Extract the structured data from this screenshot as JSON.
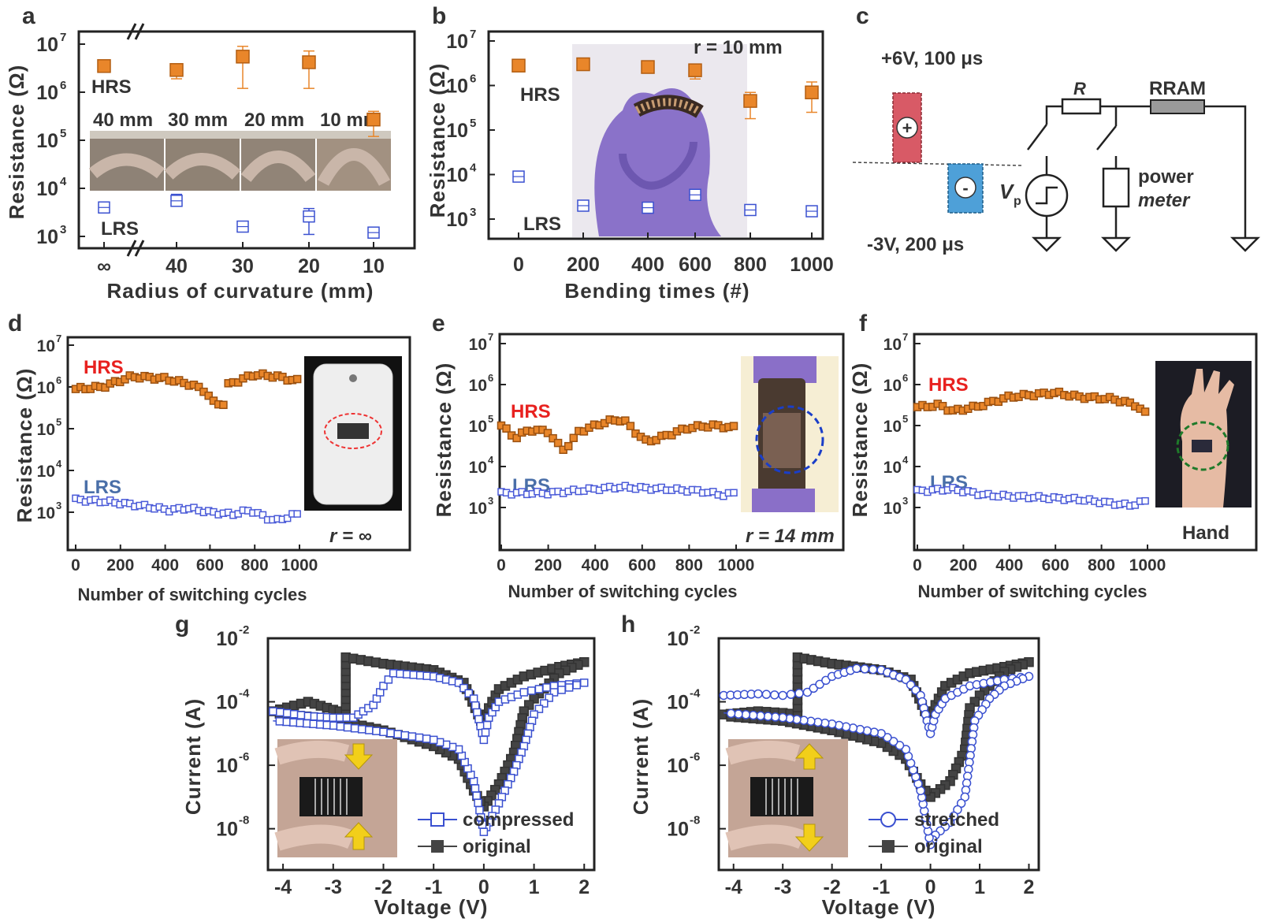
{
  "panels": {
    "a": "a",
    "b": "b",
    "c": "c",
    "d": "d",
    "e": "e",
    "f": "f",
    "g": "g",
    "h": "h"
  },
  "colors": {
    "hrs": "#e9862a",
    "lrs": "#3a50d0",
    "original": "#444444",
    "hrs_text": "#e8211f",
    "lrs_text": "#4a6fa8"
  },
  "chart_data": [
    {
      "id": "a",
      "type": "scatter",
      "xlabel": "Radius of curvature (mm)",
      "ylabel": "Resistance (Ω)",
      "categories": [
        "∞",
        "40",
        "30",
        "20",
        "10"
      ],
      "yscale": "log",
      "ylim_exp": [
        3,
        7
      ],
      "yticks": [
        "10",
        "10",
        "10",
        "10",
        "10"
      ],
      "ytick_exp": [
        "3",
        "4",
        "5",
        "6",
        "7"
      ],
      "series": [
        {
          "name": "HRS",
          "values": [
            3500000.0,
            2900000.0,
            5500000.0,
            4200000.0,
            270000.0
          ],
          "err_lo": [
            3000000.0,
            1900000.0,
            1200000.0,
            1200000.0,
            120000.0
          ],
          "err_hi": [
            4200000.0,
            3600000.0,
            9000000.0,
            7200000.0,
            400000.0
          ]
        },
        {
          "name": "LRS",
          "values": [
            4000.0,
            5500.0,
            1600.0,
            2600.0,
            1200.0
          ],
          "err_lo": [
            3300.0,
            4400.0,
            1300.0,
            1100.0,
            1000.0
          ],
          "err_hi": [
            4600.0,
            7500.0,
            1900.0,
            3800.0,
            1400.0
          ]
        }
      ],
      "inset_labels": [
        "40 mm",
        "30 mm",
        "20 mm",
        "10 mm"
      ]
    },
    {
      "id": "b",
      "type": "scatter",
      "xlabel": "Bending times (#)",
      "ylabel": "Resistance (Ω)",
      "x": [
        0,
        200,
        400,
        600,
        800,
        1000
      ],
      "xticks": [
        "0",
        "200",
        "400",
        "600",
        "800",
        "1000"
      ],
      "yscale": "log",
      "ylim_exp": [
        3,
        7
      ],
      "yticks": [
        "10",
        "10",
        "10",
        "10",
        "10"
      ],
      "ytick_exp": [
        "3",
        "4",
        "5",
        "6",
        "7"
      ],
      "series": [
        {
          "name": "HRS",
          "values": [
            2800000.0,
            3000000.0,
            2600000.0,
            2200000.0,
            450000.0,
            700000.0
          ],
          "err_lo": [
            2200000.0,
            2300000.0,
            2000000.0,
            1400000.0,
            180000.0,
            250000.0
          ],
          "err_hi": [
            3400000.0,
            3600000.0,
            3000000.0,
            2800000.0,
            700000.0,
            1200000.0
          ]
        },
        {
          "name": "LRS",
          "values": [
            9000.0,
            2000.0,
            1800.0,
            3500.0,
            1600.0,
            1500.0
          ],
          "err_lo": [
            8000.0,
            1700.0,
            1500.0,
            3000.0,
            1400.0,
            1300.0
          ],
          "err_hi": [
            10000.0,
            2300.0,
            2100.0,
            4000.0,
            1800.0,
            1700.0
          ]
        }
      ],
      "annotation": "r = 10 mm"
    },
    {
      "id": "c",
      "type": "diagram",
      "pulse_pos": "+6V, 100 μs",
      "pulse_neg": "-3V, 200 μs",
      "resistor": "R",
      "device": "RRAM",
      "source": "V",
      "source_sub": "p",
      "meter_1": "power",
      "meter_2": "meter"
    },
    {
      "id": "d",
      "type": "scatter",
      "xlabel": "Number of switching cycles",
      "ylabel": "Resistance (Ω)",
      "xticks": [
        "0",
        "200",
        "400",
        "600",
        "800",
        "1000"
      ],
      "yscale": "log",
      "ylim_exp": [
        2.6,
        7
      ],
      "yticks": [
        "10",
        "10",
        "10",
        "10",
        "10"
      ],
      "ytick_exp": [
        "3",
        "4",
        "5",
        "6",
        "7"
      ],
      "series": [
        {
          "name": "HRS",
          "start_log": 5.95,
          "segments": [
            [
              0,
              5.95
            ],
            [
              120,
              6.0
            ],
            [
              250,
              6.25
            ],
            [
              400,
              6.2
            ],
            [
              520,
              6.05
            ],
            [
              580,
              5.9
            ],
            [
              620,
              5.6
            ],
            [
              660,
              5.6
            ],
            [
              680,
              6.05
            ],
            [
              800,
              6.3
            ],
            [
              900,
              6.25
            ],
            [
              980,
              6.15
            ]
          ]
        },
        {
          "name": "LRS",
          "segments": [
            [
              0,
              3.3
            ],
            [
              150,
              3.25
            ],
            [
              300,
              3.15
            ],
            [
              420,
              3.05
            ],
            [
              500,
              3.1
            ],
            [
              600,
              3.0
            ],
            [
              700,
              2.95
            ],
            [
              780,
              3.05
            ],
            [
              860,
              2.85
            ],
            [
              900,
              2.8
            ],
            [
              980,
              2.95
            ]
          ]
        }
      ],
      "annotation": "r = ∞"
    },
    {
      "id": "e",
      "type": "scatter",
      "xlabel": "Number of switching cycles",
      "ylabel": "Resistance (Ω)",
      "xticks": [
        "0",
        "200",
        "400",
        "600",
        "800",
        "1000"
      ],
      "yscale": "log",
      "ylim_exp": [
        2.6,
        7
      ],
      "yticks": [
        "10",
        "10",
        "10",
        "10",
        "10"
      ],
      "ytick_exp": [
        "3",
        "4",
        "5",
        "6",
        "7"
      ],
      "series": [
        {
          "name": "HRS",
          "segments": [
            [
              0,
              5.0
            ],
            [
              60,
              4.7
            ],
            [
              120,
              4.9
            ],
            [
              200,
              4.85
            ],
            [
              260,
              4.4
            ],
            [
              300,
              4.6
            ],
            [
              330,
              4.85
            ],
            [
              450,
              5.1
            ],
            [
              520,
              5.15
            ],
            [
              560,
              4.9
            ],
            [
              620,
              4.6
            ],
            [
              700,
              4.75
            ],
            [
              800,
              4.95
            ],
            [
              900,
              5.0
            ],
            [
              990,
              4.95
            ]
          ]
        },
        {
          "name": "LRS",
          "segments": [
            [
              0,
              3.35
            ],
            [
              200,
              3.35
            ],
            [
              300,
              3.4
            ],
            [
              500,
              3.5
            ],
            [
              700,
              3.45
            ],
            [
              850,
              3.4
            ],
            [
              950,
              3.3
            ],
            [
              990,
              3.35
            ]
          ]
        }
      ],
      "annotation": "r = 14 mm"
    },
    {
      "id": "f",
      "type": "scatter",
      "xlabel": "Number of switching cycles",
      "ylabel": "Resistance (Ω)",
      "xticks": [
        "0",
        "200",
        "400",
        "600",
        "800",
        "1000"
      ],
      "yscale": "log",
      "ylim_exp": [
        2.6,
        7
      ],
      "yticks": [
        "10",
        "10",
        "10",
        "10",
        "10"
      ],
      "ytick_exp": [
        "3",
        "4",
        "5",
        "6",
        "7"
      ],
      "series": [
        {
          "name": "HRS",
          "segments": [
            [
              0,
              5.45
            ],
            [
              100,
              5.5
            ],
            [
              150,
              5.35
            ],
            [
              250,
              5.45
            ],
            [
              400,
              5.7
            ],
            [
              500,
              5.75
            ],
            [
              600,
              5.8
            ],
            [
              700,
              5.7
            ],
            [
              850,
              5.65
            ],
            [
              950,
              5.5
            ],
            [
              990,
              5.3
            ]
          ]
        },
        {
          "name": "LRS",
          "segments": [
            [
              0,
              3.4
            ],
            [
              150,
              3.45
            ],
            [
              300,
              3.3
            ],
            [
              500,
              3.25
            ],
            [
              700,
              3.2
            ],
            [
              850,
              3.1
            ],
            [
              920,
              3.05
            ],
            [
              990,
              3.15
            ]
          ]
        }
      ],
      "annotation": "Hand"
    },
    {
      "id": "g",
      "type": "line",
      "xlabel": "Voltage (V)",
      "ylabel": "Current (A)",
      "xticks": [
        "-4",
        "-3",
        "-2",
        "-1",
        "0",
        "1",
        "2"
      ],
      "yticks": [
        "10",
        "10",
        "10",
        "10"
      ],
      "ytick_exp": [
        "-8",
        "-6",
        "-4",
        "-2"
      ],
      "xlim": [
        -4.3,
        2.2
      ],
      "ylim_exp": [
        -9.3,
        -2
      ],
      "series": [
        {
          "name": "compressed",
          "path": [
            [
              -4.2,
              -4.3
            ],
            [
              -3.5,
              -4.45
            ],
            [
              -3.0,
              -4.5
            ],
            [
              -2.6,
              -4.5
            ],
            [
              -2.4,
              -4.3
            ],
            [
              -2.2,
              -4.1
            ],
            [
              -2.0,
              -3.5
            ],
            [
              -1.8,
              -3.1
            ],
            [
              -1.0,
              -3.2
            ],
            [
              -0.5,
              -3.4
            ],
            [
              -0.2,
              -3.9
            ],
            [
              0.0,
              -5.2
            ],
            [
              0.1,
              -4.5
            ],
            [
              0.3,
              -4.0
            ],
            [
              0.8,
              -3.7
            ],
            [
              1.4,
              -3.5
            ],
            [
              2.0,
              -3.4
            ],
            [
              1.4,
              -3.7
            ],
            [
              1.0,
              -4.4
            ],
            [
              0.8,
              -5.4
            ],
            [
              0.6,
              -6.2
            ],
            [
              0.3,
              -7.2
            ],
            [
              0.1,
              -7.8
            ],
            [
              0.0,
              -8.1
            ],
            [
              -0.2,
              -6.5
            ],
            [
              -0.5,
              -5.5
            ],
            [
              -1.0,
              -5.2
            ],
            [
              -2.0,
              -4.95
            ],
            [
              -3.0,
              -4.75
            ],
            [
              -4.2,
              -4.6
            ]
          ]
        },
        {
          "name": "original",
          "path": [
            [
              -4.2,
              -4.3
            ],
            [
              -3.5,
              -4.0
            ],
            [
              -3.0,
              -4.25
            ],
            [
              -2.75,
              -4.35
            ],
            [
              -2.75,
              -2.6
            ],
            [
              -2.0,
              -2.8
            ],
            [
              -1.0,
              -3.0
            ],
            [
              -0.4,
              -3.4
            ],
            [
              0.0,
              -4.8
            ],
            [
              0.1,
              -4.2
            ],
            [
              0.3,
              -3.6
            ],
            [
              0.8,
              -3.2
            ],
            [
              1.5,
              -2.9
            ],
            [
              2.0,
              -2.75
            ],
            [
              1.5,
              -3.1
            ],
            [
              1.0,
              -3.9
            ],
            [
              0.8,
              -4.3
            ],
            [
              0.6,
              -5.6
            ],
            [
              0.3,
              -6.6
            ],
            [
              0.0,
              -7.3
            ],
            [
              -0.2,
              -6.8
            ],
            [
              -0.5,
              -5.8
            ],
            [
              -1.0,
              -5.4
            ],
            [
              -2.0,
              -4.9
            ],
            [
              -3.0,
              -4.55
            ],
            [
              -4.2,
              -4.35
            ]
          ]
        }
      ]
    },
    {
      "id": "h",
      "type": "line",
      "xlabel": "Voltage (V)",
      "ylabel": "Current (A)",
      "xticks": [
        "-4",
        "-3",
        "-2",
        "-1",
        "0",
        "1",
        "2"
      ],
      "yticks": [
        "10",
        "10",
        "10",
        "10"
      ],
      "ytick_exp": [
        "-8",
        "-6",
        "-4",
        "-2"
      ],
      "xlim": [
        -4.3,
        2.2
      ],
      "ylim_exp": [
        -9.3,
        -2
      ],
      "series": [
        {
          "name": "stretched",
          "path": [
            [
              -4.2,
              -3.8
            ],
            [
              -3.5,
              -3.75
            ],
            [
              -3.0,
              -3.8
            ],
            [
              -2.5,
              -3.7
            ],
            [
              -2.0,
              -3.2
            ],
            [
              -1.5,
              -2.95
            ],
            [
              -1.0,
              -3.0
            ],
            [
              -0.5,
              -3.3
            ],
            [
              -0.2,
              -3.8
            ],
            [
              0.0,
              -5.0
            ],
            [
              0.1,
              -4.4
            ],
            [
              0.3,
              -3.9
            ],
            [
              0.8,
              -3.5
            ],
            [
              1.5,
              -3.3
            ],
            [
              2.0,
              -3.2
            ],
            [
              1.5,
              -3.5
            ],
            [
              1.2,
              -3.9
            ],
            [
              0.9,
              -4.6
            ],
            [
              0.7,
              -7.0
            ],
            [
              0.4,
              -7.8
            ],
            [
              0.1,
              -8.2
            ],
            [
              0.0,
              -8.5
            ],
            [
              -0.2,
              -6.8
            ],
            [
              -0.5,
              -5.5
            ],
            [
              -1.0,
              -5.0
            ],
            [
              -2.0,
              -4.7
            ],
            [
              -3.0,
              -4.5
            ],
            [
              -4.2,
              -4.35
            ]
          ]
        },
        {
          "name": "original",
          "path": [
            [
              -4.2,
              -4.4
            ],
            [
              -3.5,
              -4.3
            ],
            [
              -3.0,
              -4.35
            ],
            [
              -2.7,
              -4.4
            ],
            [
              -2.7,
              -2.6
            ],
            [
              -2.0,
              -2.8
            ],
            [
              -1.0,
              -3.0
            ],
            [
              -0.4,
              -3.3
            ],
            [
              0.0,
              -4.7
            ],
            [
              0.1,
              -4.1
            ],
            [
              0.3,
              -3.5
            ],
            [
              0.8,
              -3.1
            ],
            [
              1.5,
              -2.9
            ],
            [
              2.0,
              -2.75
            ],
            [
              1.5,
              -3.05
            ],
            [
              1.0,
              -3.8
            ],
            [
              0.8,
              -4.2
            ],
            [
              0.7,
              -5.5
            ],
            [
              0.4,
              -6.5
            ],
            [
              0.0,
              -7.0
            ],
            [
              -0.2,
              -6.6
            ],
            [
              -0.5,
              -5.8
            ],
            [
              -1.0,
              -5.3
            ],
            [
              -2.0,
              -4.9
            ],
            [
              -3.0,
              -4.6
            ],
            [
              -4.2,
              -4.45
            ]
          ]
        }
      ]
    }
  ]
}
